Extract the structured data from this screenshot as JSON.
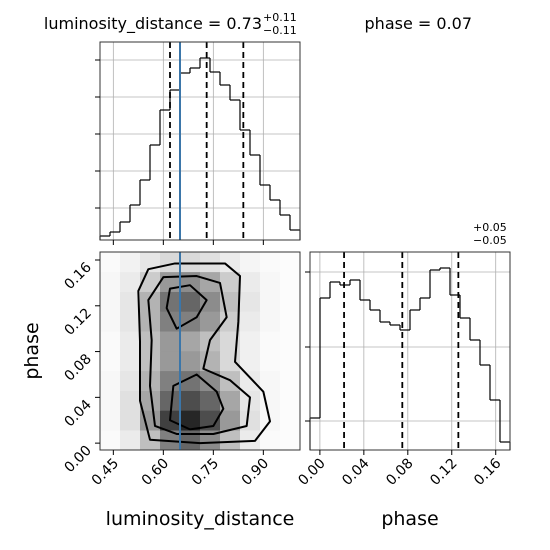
{
  "chart_data": [
    {
      "type": "histogram",
      "title": "luminosity_distance = 0.73",
      "title_upper": "+0.11",
      "title_lower": "−0.11",
      "bins": [
        0.41,
        0.44,
        0.47,
        0.5,
        0.53,
        0.56,
        0.59,
        0.62,
        0.65,
        0.68,
        0.71,
        0.74,
        0.77,
        0.8,
        0.83,
        0.86,
        0.89,
        0.92,
        0.95,
        0.98,
        1.01
      ],
      "counts": [
        4,
        8,
        18,
        35,
        60,
        95,
        130,
        150,
        167,
        172,
        182,
        168,
        155,
        140,
        110,
        85,
        55,
        40,
        25,
        10
      ],
      "color": "#000000",
      "xlim": [
        0.41,
        1.01
      ],
      "ylim": [
        0,
        198
      ],
      "xticks": [
        0.45,
        0.6,
        0.75,
        0.9
      ],
      "yticks": [
        32,
        69,
        106,
        143,
        180
      ],
      "quantiles": [
        0.62,
        0.73,
        0.84
      ],
      "truth": 0.65,
      "truth_color": "#3b76a9",
      "grid": true
    },
    {
      "type": "hist2d",
      "xlabel": "luminosity_distance",
      "ylabel": "phase",
      "xlim": [
        0.41,
        1.01
      ],
      "ylim": [
        -0.006,
        0.167
      ],
      "xticks": [
        0.45,
        {
          "value": 0.6,
          "label": "0.60"
        },
        0.75,
        {
          "value": 0.9,
          "label": "0.90"
        }
      ],
      "yticks": [
        {
          "value": 0,
          "label": "0.00"
        },
        0.04,
        0.08,
        0.12,
        0.16
      ],
      "bins_x": [
        0.41,
        0.47,
        0.53,
        0.59,
        0.65,
        0.71,
        0.77,
        0.83,
        0.89,
        0.95,
        1.01
      ],
      "bins_y": [
        -0.006,
        0.0113,
        0.0286,
        0.0459,
        0.0632,
        0.0805,
        0.0978,
        0.1151,
        0.1324,
        0.1497,
        0.167
      ],
      "density": [
        [
          0.02,
          0.08,
          0.25,
          0.5,
          0.6,
          0.45,
          0.25,
          0.08,
          0.02,
          0.01
        ],
        [
          0.03,
          0.12,
          0.4,
          0.75,
          0.85,
          0.7,
          0.4,
          0.12,
          0.03,
          0.01
        ],
        [
          0.03,
          0.12,
          0.35,
          0.6,
          0.7,
          0.6,
          0.35,
          0.1,
          0.03,
          0.01
        ],
        [
          0.03,
          0.1,
          0.3,
          0.5,
          0.55,
          0.45,
          0.25,
          0.08,
          0.03,
          0.01
        ],
        [
          0.02,
          0.08,
          0.25,
          0.4,
          0.4,
          0.3,
          0.15,
          0.06,
          0.02,
          0.01
        ],
        [
          0.02,
          0.08,
          0.25,
          0.4,
          0.35,
          0.25,
          0.15,
          0.06,
          0.02,
          0.01
        ],
        [
          0.03,
          0.1,
          0.3,
          0.5,
          0.5,
          0.4,
          0.2,
          0.08,
          0.03,
          0.01
        ],
        [
          0.03,
          0.1,
          0.3,
          0.55,
          0.6,
          0.45,
          0.25,
          0.1,
          0.03,
          0.01
        ],
        [
          0.03,
          0.08,
          0.2,
          0.4,
          0.45,
          0.35,
          0.2,
          0.08,
          0.03,
          0.01
        ],
        [
          0.02,
          0.05,
          0.1,
          0.15,
          0.15,
          0.12,
          0.08,
          0.04,
          0.02,
          0.01
        ]
      ],
      "contours": [
        {
          "x": [
            0.56,
            0.53,
            0.53,
            0.525,
            0.555,
            0.635,
            0.785,
            0.83,
            0.825,
            0.815,
            0.9,
            0.92,
            0.875,
            0.71
          ],
          "y": [
            0.003,
            0.037,
            0.089,
            0.133,
            0.152,
            0.157,
            0.157,
            0.146,
            0.106,
            0.071,
            0.045,
            0.019,
            0.002,
            0.0
          ]
        },
        {
          "x": [
            0.575,
            0.56,
            0.565,
            0.555,
            0.6,
            0.7,
            0.77,
            0.79,
            0.74,
            0.72,
            0.8,
            0.86,
            0.85,
            0.75,
            0.64
          ],
          "y": [
            0.015,
            0.05,
            0.09,
            0.125,
            0.145,
            0.146,
            0.14,
            0.11,
            0.09,
            0.065,
            0.055,
            0.04,
            0.015,
            0.008,
            0.008
          ]
        },
        {
          "x": [
            0.62,
            0.68,
            0.73,
            0.7,
            0.64,
            0.61
          ],
          "y": [
            0.135,
            0.138,
            0.125,
            0.11,
            0.1,
            0.118
          ]
        },
        {
          "x": [
            0.62,
            0.63,
            0.7,
            0.76,
            0.78,
            0.75,
            0.68
          ],
          "y": [
            0.02,
            0.05,
            0.06,
            0.045,
            0.03,
            0.015,
            0.012
          ]
        }
      ],
      "truth": 0.65,
      "truth_color": "#3b76a9",
      "grid": false
    },
    {
      "type": "histogram",
      "title": "phase = 0.07",
      "title_upper": "+0.05",
      "title_lower": "−0.05",
      "xlabel": "phase",
      "bins": [
        -0.009,
        0.0001,
        0.0092,
        0.0183,
        0.0274,
        0.0365,
        0.0456,
        0.0547,
        0.0638,
        0.0729,
        0.082,
        0.0911,
        0.1002,
        0.1093,
        0.1184,
        0.1275,
        0.1366,
        0.1457,
        0.1548,
        0.1639,
        0.173
      ],
      "counts": [
        32,
        152,
        168,
        165,
        170,
        150,
        140,
        128,
        125,
        120,
        140,
        152,
        180,
        182,
        155,
        132,
        110,
        85,
        50,
        8
      ],
      "color": "#000000",
      "xlim": [
        -0.009,
        0.173
      ],
      "ylim": [
        0,
        198
      ],
      "xticks": [
        {
          "value": 0,
          "label": "0.00"
        },
        0.04,
        0.08,
        0.12,
        0.16
      ],
      "yticks": [
        29,
        103,
        178
      ],
      "quantiles": [
        0.022,
        0.075,
        0.126
      ],
      "grid": true
    }
  ]
}
